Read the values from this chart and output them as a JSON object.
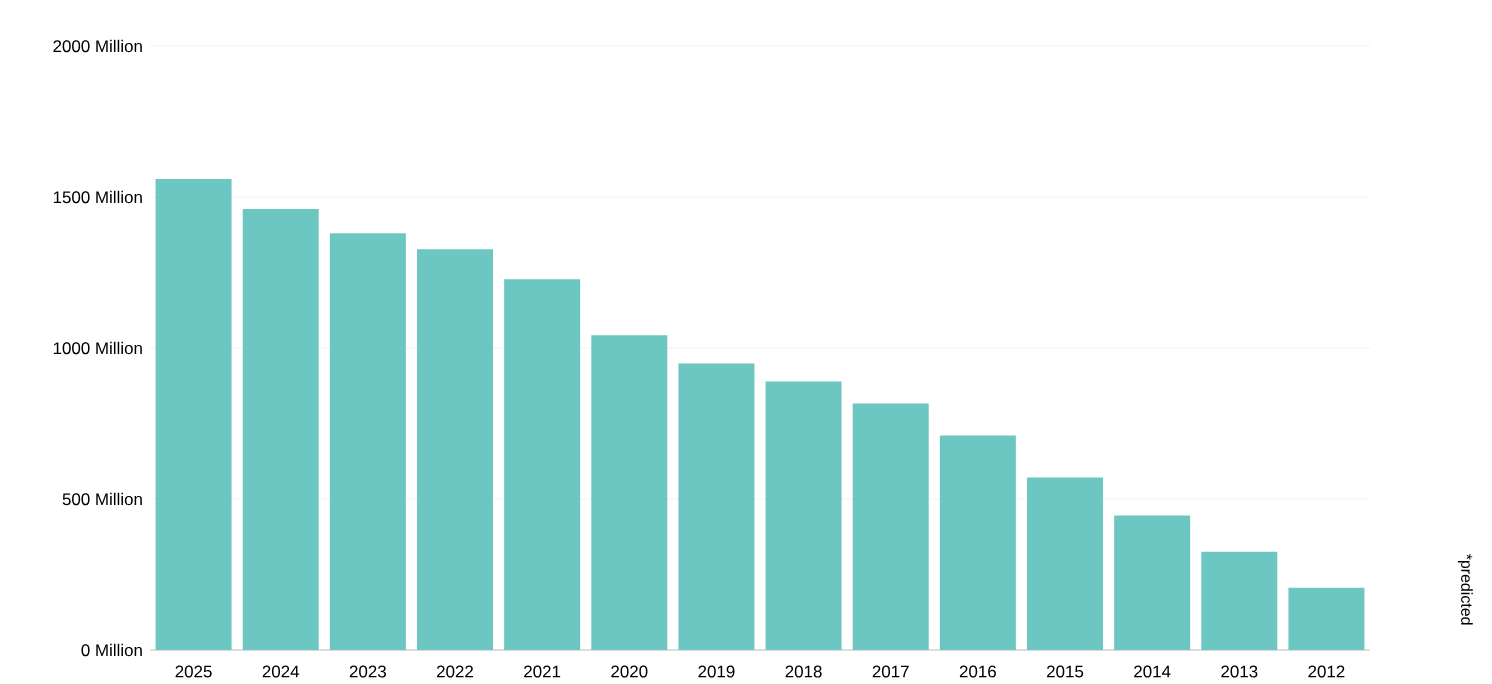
{
  "chart_data": {
    "type": "bar",
    "categories": [
      "2025",
      "2024",
      "2023",
      "2022",
      "2021",
      "2020",
      "2019",
      "2018",
      "2017",
      "2016",
      "2015",
      "2014",
      "2013",
      "2012"
    ],
    "values": [
      1560,
      1460,
      1380,
      1327,
      1228,
      1042,
      949,
      889,
      816,
      710,
      571,
      445,
      325,
      206
    ],
    "color": "#6cc7c3",
    "ylim": [
      0,
      2000
    ],
    "yticks": [
      {
        "value": 0,
        "label": "0 Million"
      },
      {
        "value": 500,
        "label": "500 Million"
      },
      {
        "value": 1000,
        "label": "1000 Million"
      },
      {
        "value": 1500,
        "label": "1500 Million"
      },
      {
        "value": 2000,
        "label": "2000 Million"
      }
    ],
    "grid": "y",
    "annotations": [
      "*predicted"
    ]
  }
}
